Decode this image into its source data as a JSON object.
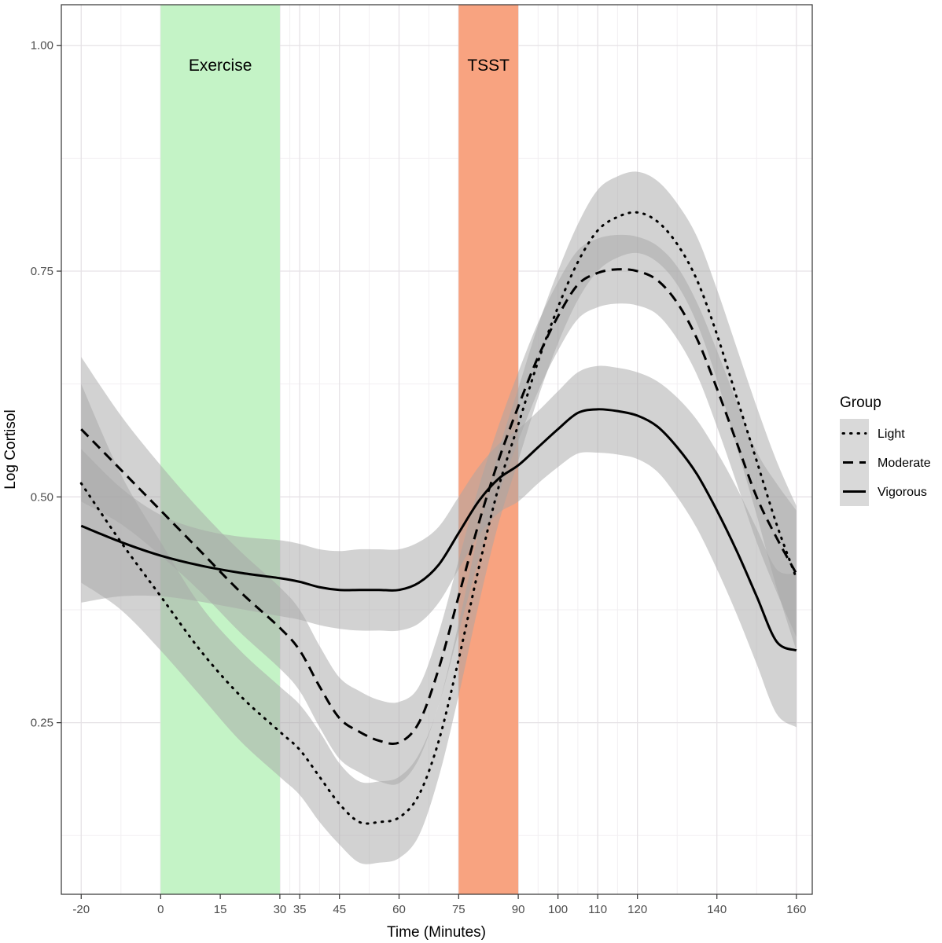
{
  "chart_data": {
    "type": "line",
    "xlabel": "Time (Minutes)",
    "ylabel": "Log Cortisol",
    "xlim": [
      -25,
      164
    ],
    "ylim": [
      0.06,
      1.045
    ],
    "x_ticks": [
      -20,
      0,
      15,
      30,
      35,
      45,
      60,
      75,
      90,
      100,
      110,
      120,
      140,
      160
    ],
    "x_tick_labels": [
      "-20",
      "0",
      "15",
      "30",
      "35",
      "45",
      "60",
      "75",
      "90",
      "100",
      "110",
      "120",
      "140",
      "160"
    ],
    "y_ticks": [
      0.25,
      0.5,
      0.75,
      1.0
    ],
    "y_tick_labels": [
      "0.25",
      "0.50",
      "0.75",
      "1.00"
    ],
    "grid": true,
    "legend": {
      "title": "Group",
      "placement": "right"
    },
    "bands": [
      {
        "label": "Exercise",
        "x_start": 0,
        "x_end": 30,
        "color": "#c4f3c6"
      },
      {
        "label": "TSST",
        "x_start": 75,
        "x_end": 90,
        "color": "#f8a380"
      }
    ],
    "series": [
      {
        "name": "Light",
        "line_style": "dotted",
        "x": [
          -20,
          -10,
          0,
          10,
          20,
          30,
          35,
          40,
          45,
          50,
          55,
          60,
          65,
          70,
          75,
          80,
          85,
          90,
          95,
          100,
          105,
          110,
          115,
          120,
          125,
          130,
          135,
          140,
          145,
          150,
          155,
          160
        ],
        "y": [
          0.515,
          0.45,
          0.39,
          0.33,
          0.28,
          0.24,
          0.22,
          0.19,
          0.16,
          0.14,
          0.14,
          0.145,
          0.17,
          0.23,
          0.32,
          0.42,
          0.51,
          0.58,
          0.65,
          0.71,
          0.76,
          0.795,
          0.81,
          0.815,
          0.805,
          0.78,
          0.74,
          0.68,
          0.61,
          0.54,
          0.47,
          0.41
        ],
        "ci_half_width": [
          0.11,
          0.075,
          0.06,
          0.05,
          0.05,
          0.05,
          0.05,
          0.05,
          0.045,
          0.045,
          0.045,
          0.045,
          0.045,
          0.04,
          0.04,
          0.04,
          0.04,
          0.04,
          0.04,
          0.04,
          0.042,
          0.045,
          0.045,
          0.045,
          0.045,
          0.045,
          0.048,
          0.05,
          0.055,
          0.06,
          0.07,
          0.08
        ]
      },
      {
        "name": "Moderate",
        "line_style": "dashed",
        "x": [
          -20,
          -10,
          0,
          10,
          20,
          30,
          35,
          40,
          45,
          50,
          55,
          60,
          65,
          70,
          75,
          80,
          85,
          90,
          95,
          100,
          105,
          110,
          115,
          120,
          125,
          130,
          135,
          140,
          145,
          150,
          155,
          160
        ],
        "y": [
          0.575,
          0.53,
          0.485,
          0.44,
          0.395,
          0.355,
          0.33,
          0.29,
          0.255,
          0.24,
          0.23,
          0.228,
          0.25,
          0.31,
          0.39,
          0.47,
          0.54,
          0.6,
          0.655,
          0.7,
          0.735,
          0.748,
          0.752,
          0.75,
          0.74,
          0.715,
          0.675,
          0.62,
          0.56,
          0.5,
          0.455,
          0.415
        ],
        "ci_half_width": [
          0.08,
          0.06,
          0.05,
          0.045,
          0.045,
          0.045,
          0.045,
          0.045,
          0.045,
          0.045,
          0.045,
          0.045,
          0.04,
          0.04,
          0.04,
          0.04,
          0.038,
          0.038,
          0.038,
          0.038,
          0.038,
          0.038,
          0.038,
          0.038,
          0.038,
          0.04,
          0.04,
          0.042,
          0.045,
          0.05,
          0.06,
          0.07
        ]
      },
      {
        "name": "Vigorous",
        "line_style": "solid",
        "x": [
          -20,
          -10,
          0,
          10,
          20,
          30,
          35,
          40,
          45,
          50,
          55,
          60,
          65,
          70,
          75,
          80,
          85,
          90,
          95,
          100,
          105,
          110,
          115,
          120,
          125,
          130,
          135,
          140,
          145,
          150,
          155,
          160
        ],
        "y": [
          0.468,
          0.45,
          0.435,
          0.424,
          0.416,
          0.41,
          0.406,
          0.4,
          0.397,
          0.397,
          0.397,
          0.397,
          0.405,
          0.425,
          0.46,
          0.495,
          0.52,
          0.535,
          0.555,
          0.575,
          0.593,
          0.597,
          0.595,
          0.59,
          0.578,
          0.555,
          0.525,
          0.485,
          0.44,
          0.39,
          0.34,
          0.33
        ],
        "ci_half_width": [
          0.085,
          0.06,
          0.045,
          0.04,
          0.04,
          0.042,
          0.042,
          0.042,
          0.043,
          0.045,
          0.045,
          0.045,
          0.045,
          0.042,
          0.04,
          0.038,
          0.038,
          0.04,
          0.04,
          0.042,
          0.045,
          0.048,
          0.048,
          0.048,
          0.05,
          0.055,
          0.06,
          0.065,
          0.07,
          0.075,
          0.08,
          0.085
        ]
      }
    ]
  },
  "colors": {
    "ribbon": "#a6a6a6",
    "line": "#000000",
    "grid_major": "#e6e2e6",
    "grid_minor": "#f2eff2",
    "legend_key_bg": "#d9d9d9"
  }
}
